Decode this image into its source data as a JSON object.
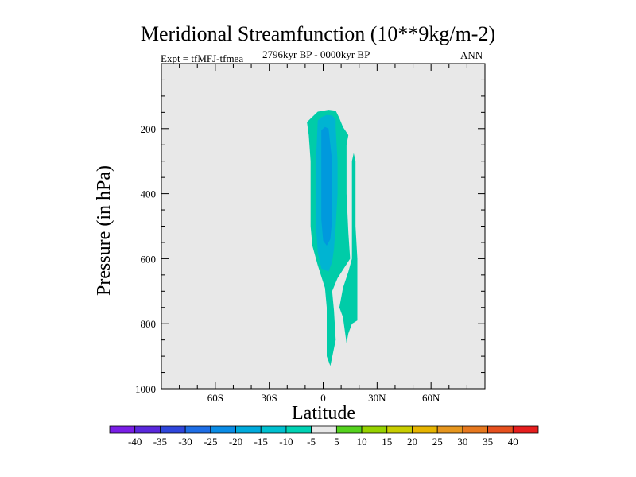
{
  "chart_data": {
    "type": "contour",
    "title": "Meridional Streamfunction (10**9kg/m-2)",
    "subtitle": "2796kyr BP - 0000kyr BP",
    "left_label": "Expt = tfMFJ-tfmea",
    "right_label": "ANN",
    "xlabel": "Latitude",
    "ylabel": "Pressure (in hPa)",
    "xlim": [
      -90,
      90
    ],
    "ylim": [
      1000,
      0
    ],
    "x_major_ticks": [
      -60,
      -30,
      0,
      30,
      60
    ],
    "x_tick_labels": [
      "60S",
      "30S",
      "0",
      "30N",
      "60N"
    ],
    "x_minor_ticks": [
      -80,
      -70,
      -50,
      -40,
      -20,
      -10,
      10,
      20,
      40,
      50,
      70,
      80
    ],
    "y_major_ticks": [
      200,
      400,
      600,
      800,
      1000
    ],
    "y_tick_labels": [
      "200",
      "400",
      "600",
      "800",
      "1000"
    ],
    "y_minor_ticks": [
      50,
      100,
      150,
      250,
      300,
      350,
      450,
      500,
      550,
      650,
      700,
      750,
      850,
      900,
      950
    ],
    "background_color": "#e8e8e8",
    "contour_regions": [
      {
        "level_range": [
          -10,
          -5
        ],
        "color": "#00cca8",
        "points": [
          [
            -9,
            180
          ],
          [
            -3,
            148
          ],
          [
            3,
            142
          ],
          [
            7,
            145
          ],
          [
            9,
            168
          ],
          [
            11,
            195
          ],
          [
            14,
            220
          ],
          [
            13,
            250
          ],
          [
            13,
            400
          ],
          [
            14,
            520
          ],
          [
            15,
            600
          ],
          [
            8,
            660
          ],
          [
            5,
            700
          ],
          [
            6,
            760
          ],
          [
            7,
            850
          ],
          [
            4,
            930
          ],
          [
            2,
            900
          ],
          [
            2,
            750
          ],
          [
            1,
            690
          ],
          [
            -3,
            620
          ],
          [
            -6,
            560
          ],
          [
            -7,
            500
          ],
          [
            -7,
            400
          ],
          [
            -7,
            300
          ],
          [
            -8,
            220
          ],
          [
            -9,
            180
          ]
        ]
      },
      {
        "level_range": [
          -10,
          -5
        ],
        "color": "#00cca8",
        "points": [
          [
            9,
            750
          ],
          [
            11,
            690
          ],
          [
            14,
            640
          ],
          [
            16,
            600
          ],
          [
            16,
            300
          ],
          [
            17,
            275
          ],
          [
            18,
            300
          ],
          [
            18,
            500
          ],
          [
            19,
            600
          ],
          [
            19,
            650
          ],
          [
            19,
            700
          ],
          [
            19,
            790
          ],
          [
            16,
            800
          ],
          [
            14,
            830
          ],
          [
            13,
            860
          ],
          [
            11,
            780
          ],
          [
            9,
            750
          ]
        ]
      },
      {
        "level_range": [
          -15,
          -10
        ],
        "color": "#00b4d2",
        "points": [
          [
            -3,
            175
          ],
          [
            -1,
            165
          ],
          [
            2,
            158
          ],
          [
            5,
            160
          ],
          [
            7,
            172
          ],
          [
            7,
            200
          ],
          [
            8,
            300
          ],
          [
            8,
            400
          ],
          [
            7,
            500
          ],
          [
            6,
            570
          ],
          [
            5,
            610
          ],
          [
            3,
            640
          ],
          [
            -1,
            630
          ],
          [
            -3,
            580
          ],
          [
            -4,
            500
          ],
          [
            -4,
            400
          ],
          [
            -4,
            300
          ],
          [
            -3,
            175
          ]
        ]
      },
      {
        "level_range": [
          -20,
          -15
        ],
        "color": "#0099dd",
        "points": [
          [
            -1,
            205
          ],
          [
            1,
            195
          ],
          [
            3,
            200
          ],
          [
            4,
            250
          ],
          [
            5,
            300
          ],
          [
            5,
            400
          ],
          [
            5,
            480
          ],
          [
            4,
            540
          ],
          [
            2,
            560
          ],
          [
            0,
            545
          ],
          [
            -1,
            480
          ],
          [
            -1,
            400
          ],
          [
            -1,
            300
          ],
          [
            -1,
            205
          ]
        ]
      }
    ],
    "colorbar": {
      "levels": [
        "-40",
        "-35",
        "-30",
        "-25",
        "-20",
        "-15",
        "-10",
        "-5",
        "5",
        "10",
        "15",
        "20",
        "25",
        "30",
        "35",
        "40"
      ],
      "colors": [
        "#7a1ee6",
        "#5a28dc",
        "#2f46dc",
        "#1e6ee6",
        "#0a8ce6",
        "#00aadc",
        "#00c0d0",
        "#00d2b4",
        "#e8e8e8",
        "#55d21e",
        "#96d200",
        "#c8cd00",
        "#e6b400",
        "#e6961e",
        "#e6781e",
        "#e6501e",
        "#e61e1e"
      ]
    }
  }
}
